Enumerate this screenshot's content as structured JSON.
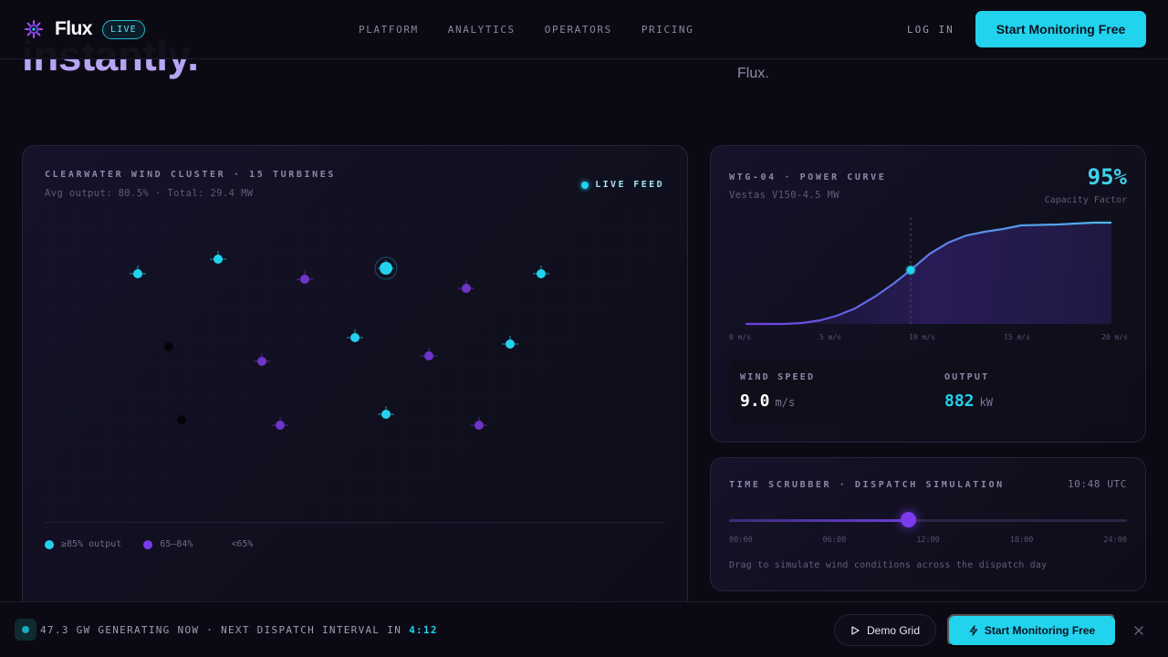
{
  "hero": {
    "heading_fragment": "instantly.",
    "subtitle_fragment": "Flux."
  },
  "header": {
    "brand": "Flux",
    "badge": "LIVE",
    "nav": [
      "PLATFORM",
      "ANALYTICS",
      "OPERATORS",
      "PRICING"
    ],
    "login": "LOG IN",
    "cta": "Start Monitoring Free"
  },
  "cluster": {
    "title": "CLEARWATER WIND CLUSTER · 15 TURBINES",
    "subtitle": "Avg output: 80.5% · Total: 29.4 MW",
    "live_label": "LIVE FEED",
    "legend": [
      {
        "label": "≥85% output",
        "color": "#22d3ee"
      },
      {
        "label": "65–84%",
        "color": "#7c3aed"
      },
      {
        "label": "<65%",
        "color": ""
      }
    ]
  },
  "power_curve": {
    "title": "WTG-04 · POWER CURVE",
    "model": "Vestas V150-4.5 MW",
    "capacity_value": "95%",
    "capacity_label": "Capacity Factor",
    "x_ticks": [
      "0 m/s",
      "5 m/s",
      "10 m/s",
      "15 m/s",
      "20 m/s"
    ],
    "wind_speed_label": "WIND SPEED",
    "wind_speed_value": "9.0",
    "wind_speed_unit": "m/s",
    "output_label": "OUTPUT",
    "output_value": "882",
    "output_unit": "kW"
  },
  "scrubber": {
    "title": "TIME SCRUBBER · DISPATCH SIMULATION",
    "time": "10:48 UTC",
    "ticks": [
      "00:00",
      "06:00",
      "12:00",
      "18:00",
      "24:00"
    ],
    "position": 0.45,
    "note": "Drag to simulate wind conditions across the dispatch day"
  },
  "bottom": {
    "status": "47.3 GW GENERATING NOW · NEXT DISPATCH INTERVAL IN",
    "countdown": "4:12",
    "demo": "Demo Grid",
    "cta": "Start Monitoring Free"
  },
  "colors": {
    "accent_cyan": "#22d3ee",
    "accent_violet": "#7c3aed",
    "background": "#0b0a14"
  }
}
